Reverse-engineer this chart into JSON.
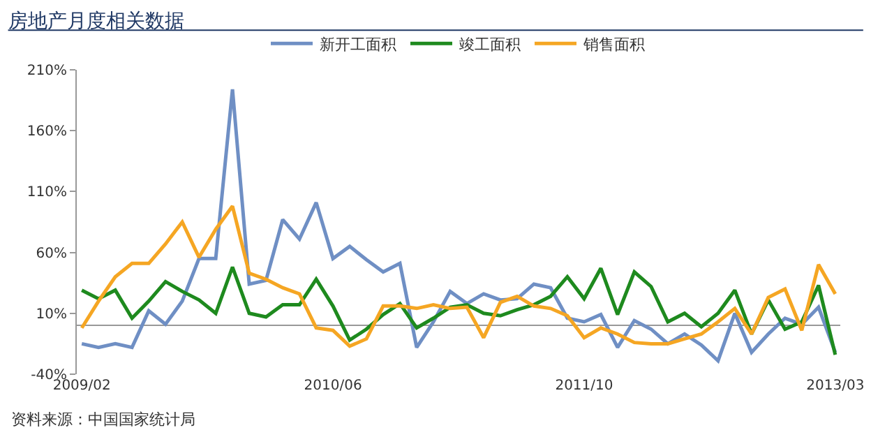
{
  "chart_data": {
    "type": "line",
    "title": "房地产月度相关数据",
    "annotations": [
      "资料来源：中国国家统计局"
    ],
    "categories": [
      "2009/02",
      null,
      null,
      null,
      null,
      null,
      null,
      null,
      null,
      null,
      null,
      null,
      null,
      null,
      null,
      "2010/06",
      null,
      null,
      null,
      null,
      null,
      null,
      null,
      null,
      null,
      null,
      null,
      null,
      null,
      null,
      "2011/10",
      null,
      null,
      null,
      null,
      null,
      null,
      null,
      null,
      null,
      null,
      null,
      null,
      null,
      null,
      "2013/03"
    ],
    "series": [
      {
        "name": "新开工面积",
        "color": "#6f8fc4",
        "values": [
          -15,
          -18,
          -15,
          -18,
          12,
          1,
          20,
          55,
          55,
          194,
          34,
          37,
          87,
          71,
          101,
          55,
          65,
          54,
          44,
          51,
          -18,
          3,
          28,
          18,
          26,
          21,
          22,
          34,
          31,
          6,
          3,
          9,
          -18,
          4,
          -3,
          -15,
          -7,
          -16,
          -29,
          10,
          -22,
          -7,
          6,
          1,
          15,
          -22
        ]
      },
      {
        "name": "竣工面积",
        "color": "#1e8a1e",
        "values": [
          29,
          22,
          29,
          6,
          20,
          36,
          28,
          21,
          10,
          48,
          10,
          7,
          17,
          17,
          38,
          16,
          -12,
          -3,
          9,
          18,
          -2,
          6,
          15,
          17,
          10,
          8,
          13,
          17,
          24,
          40,
          22,
          47,
          9,
          44,
          32,
          3,
          10,
          -1,
          10,
          29,
          -7,
          21,
          -3,
          3,
          33,
          -24
        ]
      },
      {
        "name": "销售面积",
        "color": "#f5a623",
        "values": [
          -2,
          20,
          40,
          51,
          51,
          67,
          85,
          56,
          79,
          98,
          43,
          38,
          31,
          26,
          -2,
          -4,
          -17,
          -11,
          16,
          16,
          14,
          17,
          14,
          15,
          -10,
          19,
          24,
          16,
          14,
          8,
          -10,
          -2,
          -7,
          -14,
          -15,
          -15,
          -11,
          -7,
          3,
          14,
          -7,
          23,
          30,
          -4,
          50,
          26
        ]
      }
    ],
    "ylim": [
      -40,
      210
    ],
    "yticks": [
      {
        "value": -40,
        "label": "-40%"
      },
      {
        "value": 10,
        "label": "10%"
      },
      {
        "value": 60,
        "label": "60%"
      },
      {
        "value": 110,
        "label": "110%"
      },
      {
        "value": 160,
        "label": "160%"
      },
      {
        "value": 210,
        "label": "210%"
      }
    ],
    "legend": "top",
    "grid": false,
    "marker": "none",
    "line_style": "solid"
  }
}
